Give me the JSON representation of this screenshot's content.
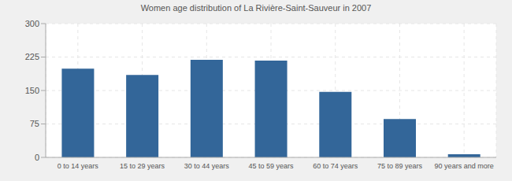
{
  "chart_data": {
    "type": "bar",
    "title": "Women age distribution of La Rivière-Saint-Sauveur in 2007",
    "categories": [
      "0 to 14 years",
      "15 to 29 years",
      "30 to 44 years",
      "45 to 59 years",
      "60 to 74 years",
      "75 to 89 years",
      "90 years and more"
    ],
    "values": [
      199,
      185,
      219,
      217,
      147,
      86,
      7
    ],
    "color": "#336699",
    "ylim": [
      0,
      300
    ],
    "yticks": [
      0,
      75,
      150,
      225,
      300
    ],
    "grid": true
  }
}
